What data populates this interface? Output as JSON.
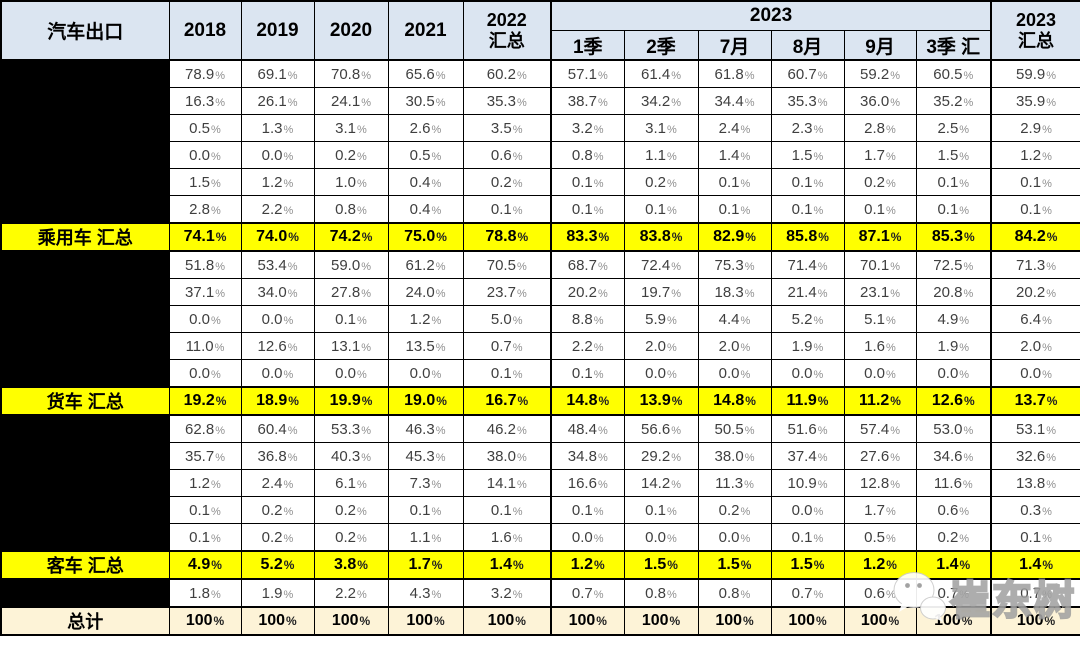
{
  "header": {
    "corner": "汽车出口",
    "years": [
      "2018",
      "2019",
      "2020",
      "2021"
    ],
    "col_2022": {
      "line1": "2022",
      "line2": "汇总"
    },
    "group_2023": "2023",
    "subcols_2023": [
      "1季",
      "2季",
      "7月",
      "8月",
      "9月",
      "3季 汇"
    ],
    "col_2023_total": {
      "line1": "2023",
      "line2": "汇总"
    }
  },
  "colors": {
    "header_bg": "#dbe5f1",
    "highlight_bg": "#ffff00",
    "total_bg": "#fdf3d7",
    "redacted_label_bg": "#000000",
    "border": "#000000",
    "data_text": "#3f3f3f"
  },
  "watermark": {
    "icon": "wechat-icon",
    "text": "崔东树"
  },
  "chart_data": {
    "type": "table",
    "title": "汽车出口",
    "columns": [
      "2018",
      "2019",
      "2020",
      "2021",
      "2022 汇总",
      "1季",
      "2季",
      "7月",
      "8月",
      "9月",
      "3季 汇",
      "2023 汇总"
    ],
    "column_groups": [
      {
        "label": "2023",
        "span_columns": [
          "1季",
          "2季",
          "7月",
          "8月",
          "9月",
          "3季 汇"
        ]
      }
    ],
    "rows": [
      {
        "label": "",
        "style": "hidden",
        "values": [
          "78.9%",
          "69.1%",
          "70.8%",
          "65.6%",
          "60.2%",
          "57.1%",
          "61.4%",
          "61.8%",
          "60.7%",
          "59.2%",
          "60.5%",
          "59.9%"
        ]
      },
      {
        "label": "",
        "style": "hidden",
        "values": [
          "16.3%",
          "26.1%",
          "24.1%",
          "30.5%",
          "35.3%",
          "38.7%",
          "34.2%",
          "34.4%",
          "35.3%",
          "36.0%",
          "35.2%",
          "35.9%"
        ]
      },
      {
        "label": "",
        "style": "hidden",
        "values": [
          "0.5%",
          "1.3%",
          "3.1%",
          "2.6%",
          "3.5%",
          "3.2%",
          "3.1%",
          "2.4%",
          "2.3%",
          "2.8%",
          "2.5%",
          "2.9%"
        ]
      },
      {
        "label": "",
        "style": "hidden",
        "values": [
          "0.0%",
          "0.0%",
          "0.2%",
          "0.5%",
          "0.6%",
          "0.8%",
          "1.1%",
          "1.4%",
          "1.5%",
          "1.7%",
          "1.5%",
          "1.2%"
        ]
      },
      {
        "label": "",
        "style": "hidden",
        "values": [
          "1.5%",
          "1.2%",
          "1.0%",
          "0.4%",
          "0.2%",
          "0.1%",
          "0.2%",
          "0.1%",
          "0.1%",
          "0.2%",
          "0.1%",
          "0.1%"
        ]
      },
      {
        "label": "",
        "style": "hidden",
        "values": [
          "2.8%",
          "2.2%",
          "0.8%",
          "0.4%",
          "0.1%",
          "0.1%",
          "0.1%",
          "0.1%",
          "0.1%",
          "0.1%",
          "0.1%",
          "0.1%"
        ]
      },
      {
        "label": "乘用车 汇总",
        "style": "summary",
        "values": [
          "74.1%",
          "74.0%",
          "74.2%",
          "75.0%",
          "78.8%",
          "83.3%",
          "83.8%",
          "82.9%",
          "85.8%",
          "87.1%",
          "85.3%",
          "84.2%"
        ]
      },
      {
        "label": "",
        "style": "hidden",
        "values": [
          "51.8%",
          "53.4%",
          "59.0%",
          "61.2%",
          "70.5%",
          "68.7%",
          "72.4%",
          "75.3%",
          "71.4%",
          "70.1%",
          "72.5%",
          "71.3%"
        ]
      },
      {
        "label": "",
        "style": "hidden",
        "values": [
          "37.1%",
          "34.0%",
          "27.8%",
          "24.0%",
          "23.7%",
          "20.2%",
          "19.7%",
          "18.3%",
          "21.4%",
          "23.1%",
          "20.8%",
          "20.2%"
        ]
      },
      {
        "label": "",
        "style": "hidden",
        "values": [
          "0.0%",
          "0.0%",
          "0.1%",
          "1.2%",
          "5.0%",
          "8.8%",
          "5.9%",
          "4.4%",
          "5.2%",
          "5.1%",
          "4.9%",
          "6.4%"
        ]
      },
      {
        "label": "",
        "style": "hidden",
        "values": [
          "11.0%",
          "12.6%",
          "13.1%",
          "13.5%",
          "0.7%",
          "2.2%",
          "2.0%",
          "2.0%",
          "1.9%",
          "1.6%",
          "1.9%",
          "2.0%"
        ]
      },
      {
        "label": "",
        "style": "hidden",
        "values": [
          "0.0%",
          "0.0%",
          "0.0%",
          "0.0%",
          "0.1%",
          "0.1%",
          "0.0%",
          "0.0%",
          "0.0%",
          "0.0%",
          "0.0%",
          "0.0%"
        ]
      },
      {
        "label": "货车 汇总",
        "style": "summary",
        "values": [
          "19.2%",
          "18.9%",
          "19.9%",
          "19.0%",
          "16.7%",
          "14.8%",
          "13.9%",
          "14.8%",
          "11.9%",
          "11.2%",
          "12.6%",
          "13.7%"
        ]
      },
      {
        "label": "",
        "style": "hidden",
        "values": [
          "62.8%",
          "60.4%",
          "53.3%",
          "46.3%",
          "46.2%",
          "48.4%",
          "56.6%",
          "50.5%",
          "51.6%",
          "57.4%",
          "53.0%",
          "53.1%"
        ]
      },
      {
        "label": "",
        "style": "hidden",
        "values": [
          "35.7%",
          "36.8%",
          "40.3%",
          "45.3%",
          "38.0%",
          "34.8%",
          "29.2%",
          "38.0%",
          "37.4%",
          "27.6%",
          "34.6%",
          "32.6%"
        ]
      },
      {
        "label": "",
        "style": "hidden",
        "values": [
          "1.2%",
          "2.4%",
          "6.1%",
          "7.3%",
          "14.1%",
          "16.6%",
          "14.2%",
          "11.3%",
          "10.9%",
          "12.8%",
          "11.6%",
          "13.8%"
        ]
      },
      {
        "label": "",
        "style": "hidden",
        "values": [
          "0.1%",
          "0.2%",
          "0.2%",
          "0.1%",
          "0.1%",
          "0.1%",
          "0.1%",
          "0.2%",
          "0.0%",
          "1.7%",
          "0.6%",
          "0.3%"
        ]
      },
      {
        "label": "",
        "style": "hidden",
        "values": [
          "0.1%",
          "0.2%",
          "0.2%",
          "1.1%",
          "1.6%",
          "0.0%",
          "0.0%",
          "0.0%",
          "0.1%",
          "0.5%",
          "0.2%",
          "0.1%"
        ]
      },
      {
        "label": "客车 汇总",
        "style": "summary",
        "values": [
          "4.9%",
          "5.2%",
          "3.8%",
          "1.7%",
          "1.4%",
          "1.2%",
          "1.5%",
          "1.5%",
          "1.5%",
          "1.2%",
          "1.4%",
          "1.4%"
        ]
      },
      {
        "label": "",
        "style": "hidden",
        "values": [
          "1.8%",
          "1.9%",
          "2.2%",
          "4.3%",
          "3.2%",
          "0.7%",
          "0.8%",
          "0.8%",
          "0.7%",
          "0.6%",
          "0.7%",
          "0.7%"
        ]
      },
      {
        "label": "总计",
        "style": "total",
        "values": [
          "100%",
          "100%",
          "100%",
          "100%",
          "100%",
          "100%",
          "100%",
          "100%",
          "100%",
          "100%",
          "100%",
          "100%"
        ]
      }
    ]
  }
}
